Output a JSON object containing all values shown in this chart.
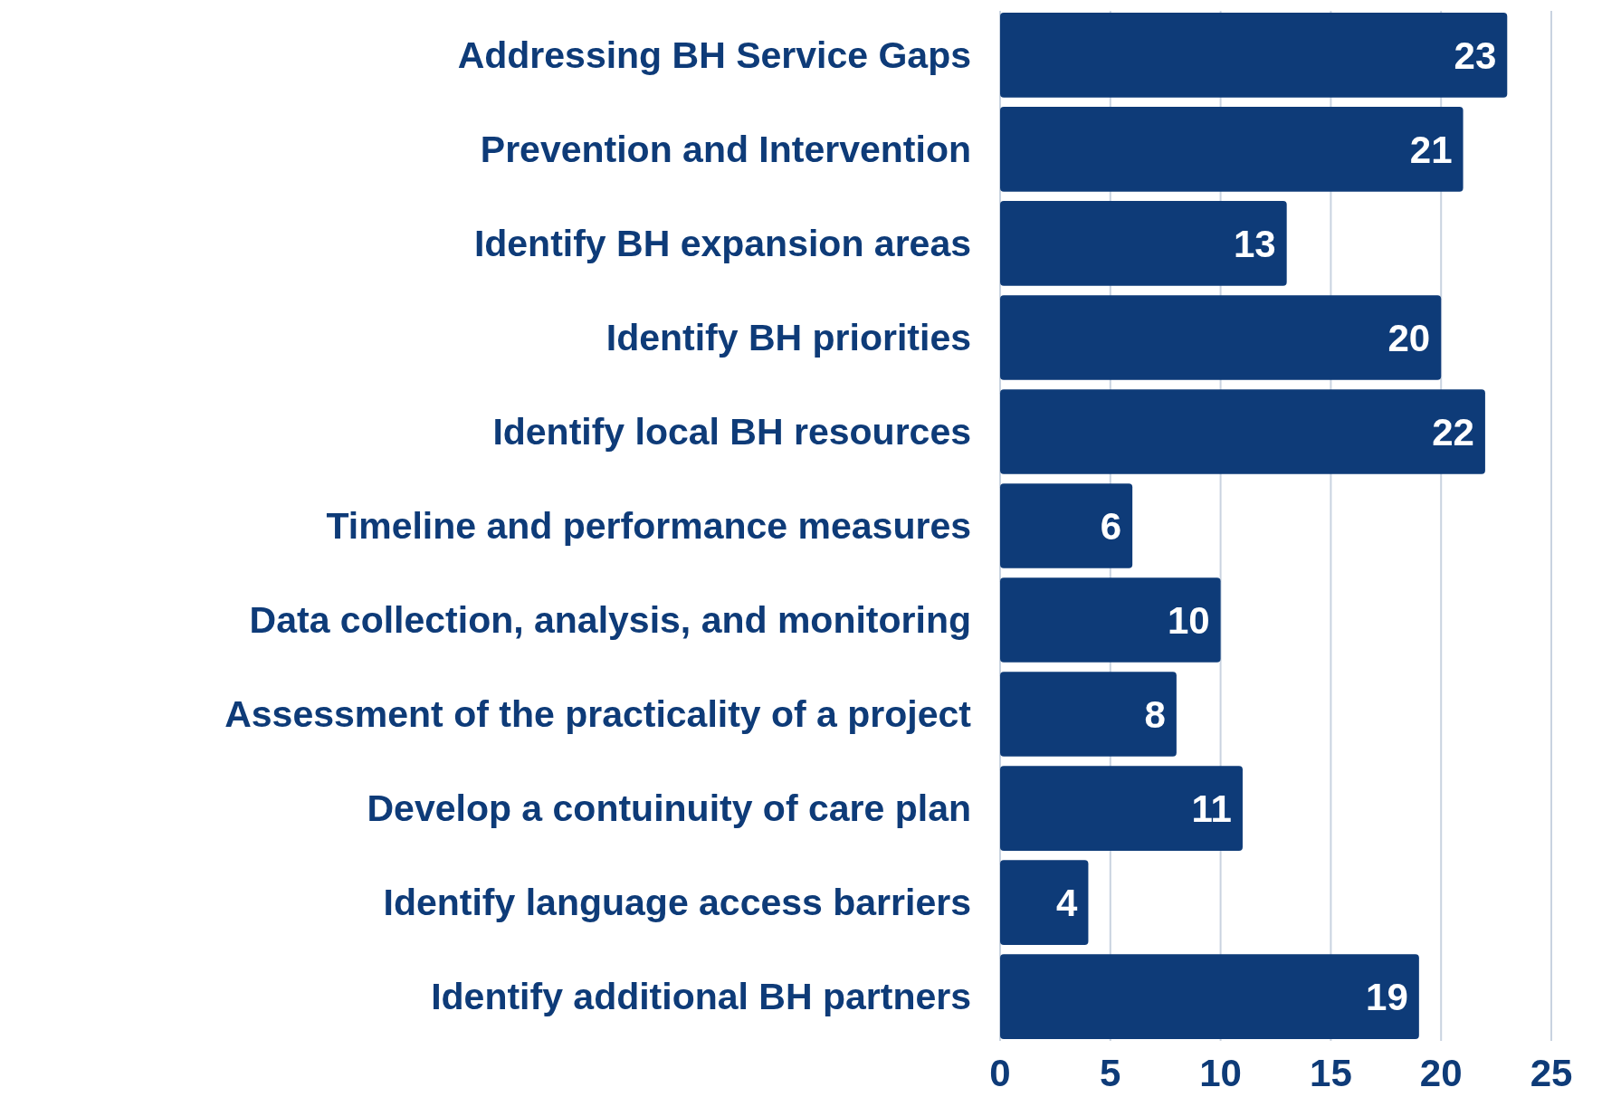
{
  "chart_data": {
    "type": "bar",
    "orientation": "horizontal",
    "categories": [
      "Addressing BH Service Gaps",
      "Prevention and Intervention",
      "Identify BH expansion areas",
      "Identify BH priorities",
      "Identify local BH resources",
      "Timeline and performance measures",
      "Data collection, analysis, and monitoring",
      "Assessment of the practicality of a project",
      "Develop a contuinuity of care plan",
      "Identify language access barriers",
      "Identify additional BH partners"
    ],
    "values": [
      23,
      21,
      13,
      20,
      22,
      6,
      10,
      8,
      11,
      4,
      19
    ],
    "color": "#0e3b78",
    "xlim": [
      0,
      25
    ],
    "xticks": [
      0,
      5,
      10,
      15,
      20,
      25
    ],
    "grid": "x",
    "data_labels": true
  }
}
